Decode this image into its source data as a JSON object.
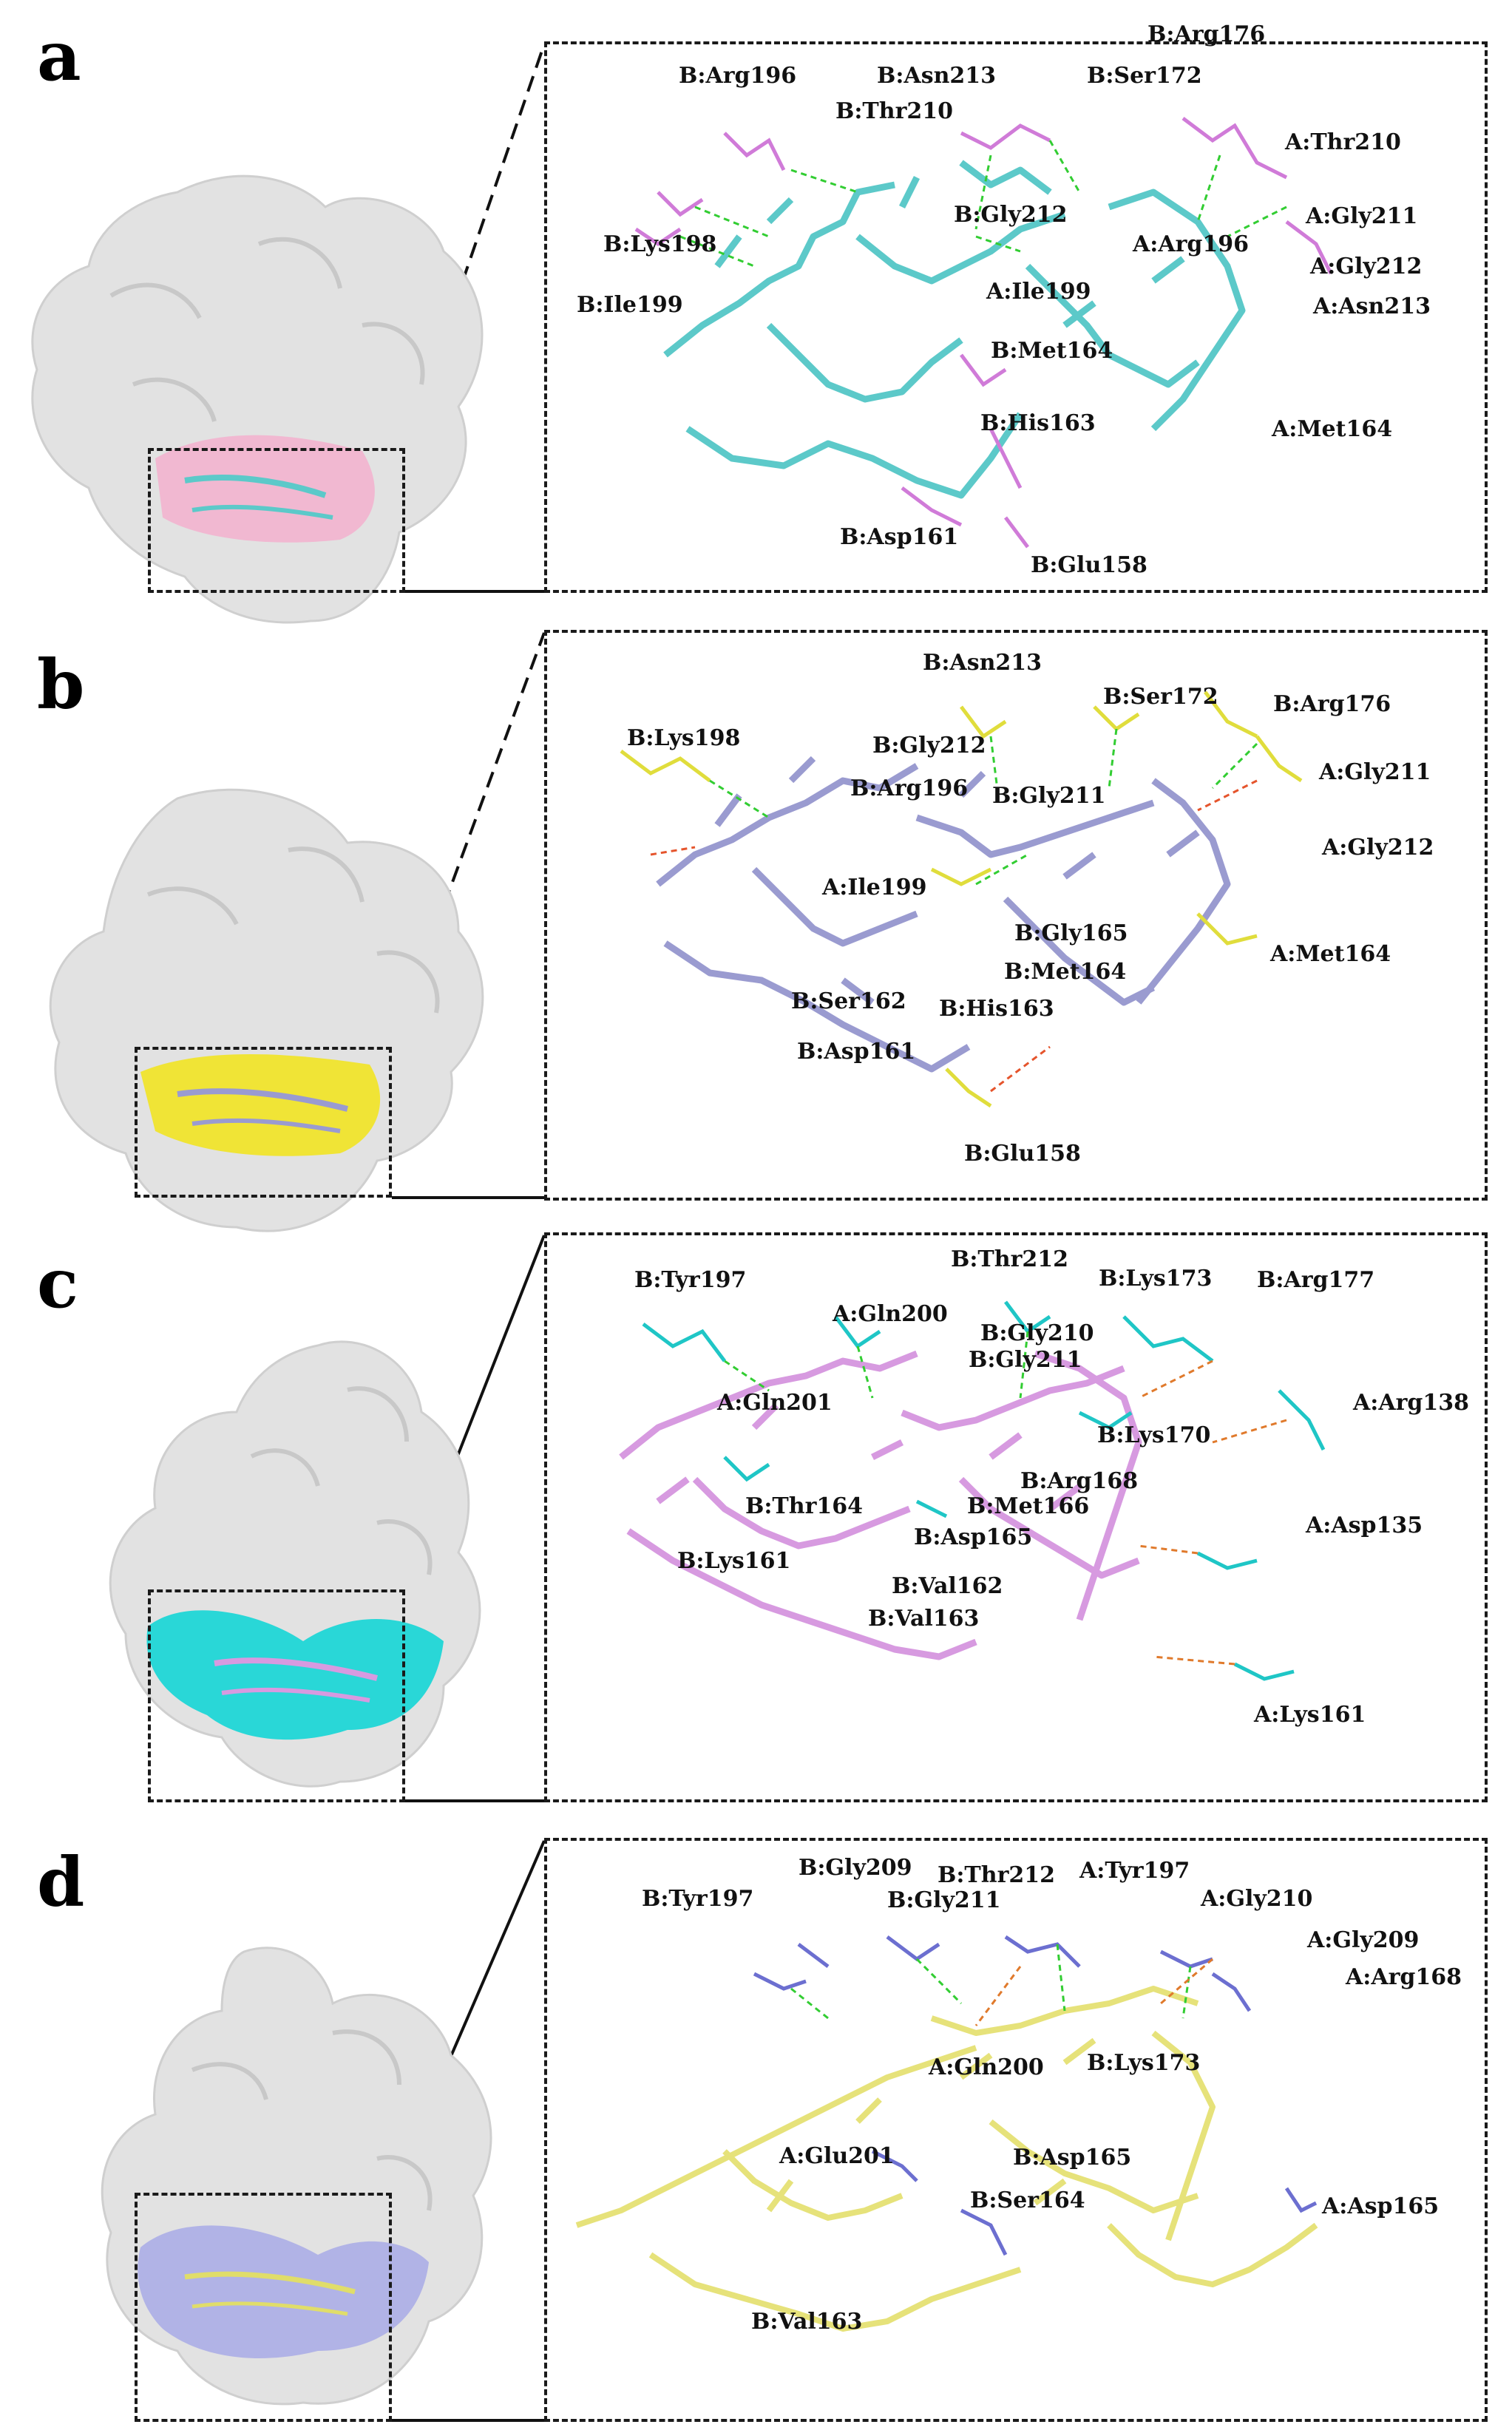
{
  "panels": [
    {
      "letter": "a",
      "surface_color": "#f7b8d4",
      "ligand_color": "#5cc9c9",
      "labels": [
        "B:Arg176",
        "B:Arg196",
        "B:Asn213",
        "B:Ser172",
        "B:Thr210",
        "A:Thr210",
        "B:Gly212",
        "A:Gly211",
        "B:Lys198",
        "A:Arg196",
        "A:Gly212",
        "A:Ile199",
        "B:Ile199",
        "A:Asn213",
        "B:Met164",
        "A:Met164",
        "B:His163",
        "B:Asp161",
        "B:Glu158"
      ]
    },
    {
      "letter": "b",
      "surface_color": "#f2e62a",
      "ligand_color": "#9a9bd0",
      "labels": [
        "B:Asn213",
        "B:Ser172",
        "B:Arg176",
        "B:Lys198",
        "B:Gly212",
        "A:Gly211",
        "B:Arg196",
        "B:Gly211",
        "A:Gly212",
        "A:Ile199",
        "B:Gly165",
        "B:Met164",
        "A:Met164",
        "B:Ser162",
        "B:His163",
        "B:Asp161",
        "B:Glu158"
      ]
    },
    {
      "letter": "c",
      "surface_color": "#1fd6d6",
      "ligand_color": "#d79ae0",
      "labels": [
        "B:Thr212",
        "B:Tyr197",
        "B:Lys173",
        "B:Arg177",
        "A:Gln200",
        "B:Gly210",
        "B:Gly211",
        "A:Gln201",
        "A:Arg138",
        "B:Lys170",
        "B:Arg168",
        "B:Thr164",
        "B:Met166",
        "B:Asp165",
        "A:Asp135",
        "B:Lys161",
        "B:Val162",
        "B:Val163",
        "A:Lys161"
      ]
    },
    {
      "letter": "d",
      "surface_color": "#aeb0e6",
      "ligand_color": "#e6e27a",
      "labels": [
        "B:Gly209",
        "B:Thr212",
        "A:Tyr197",
        "B:Tyr197",
        "B:Gly211",
        "A:Gly210",
        "A:Gly209",
        "A:Arg168",
        "A:Gln200",
        "B:Lys173",
        "A:Glu201",
        "B:Asp165",
        "A:Asp165",
        "B:Ser164",
        "B:Val163"
      ]
    }
  ]
}
